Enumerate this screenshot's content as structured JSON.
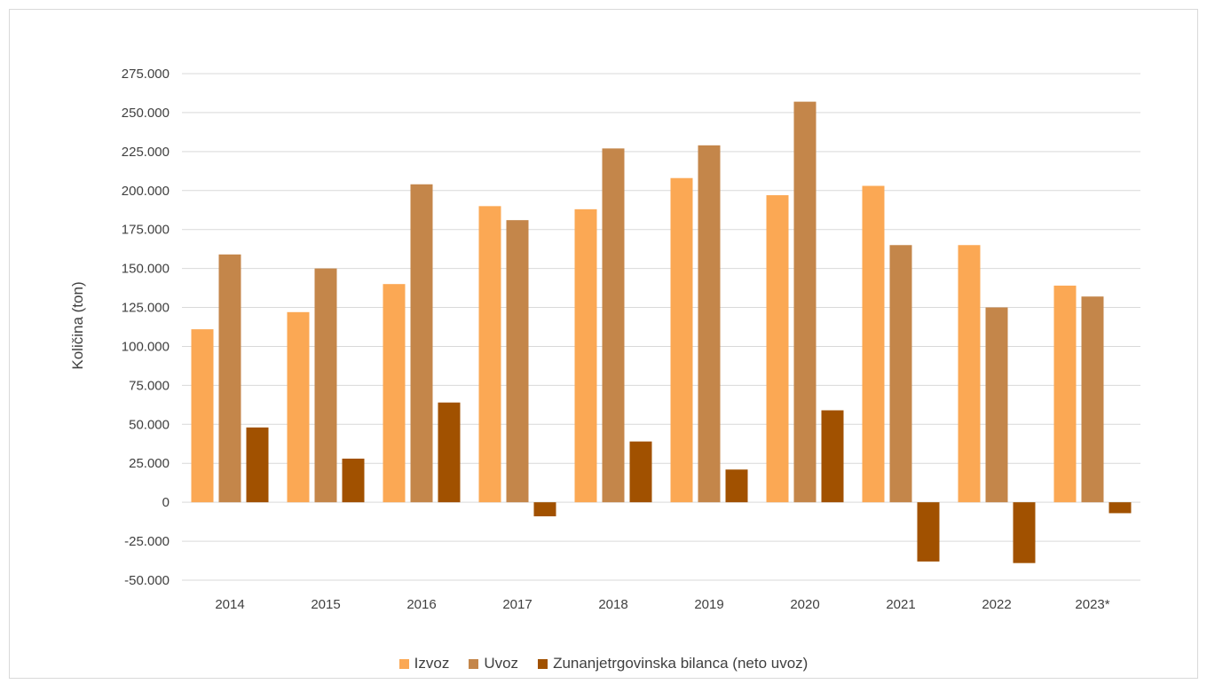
{
  "chart_data": {
    "type": "bar",
    "title": "",
    "xlabel": "",
    "ylabel": "Količina (ton)",
    "categories": [
      "2014",
      "2015",
      "2016",
      "2017",
      "2018",
      "2019",
      "2020",
      "2021",
      "2022",
      "2023*"
    ],
    "series": [
      {
        "name": "Izvoz",
        "color": "#FBA854",
        "values": [
          111000,
          122000,
          140000,
          190000,
          188000,
          208000,
          197000,
          203000,
          165000,
          139000
        ]
      },
      {
        "name": "Uvoz",
        "color": "#C4864A",
        "values": [
          159000,
          150000,
          204000,
          181000,
          227000,
          229000,
          257000,
          165000,
          125000,
          132000
        ]
      },
      {
        "name": "Zunanjetrgovinska bilanca (neto uvoz)",
        "color": "#A15100",
        "values": [
          48000,
          28000,
          64000,
          -9000,
          39000,
          21000,
          59000,
          -38000,
          -39000,
          -7000
        ]
      }
    ],
    "ylim": [
      -50000,
      275000
    ],
    "yticks": [
      -50000,
      -25000,
      0,
      25000,
      50000,
      75000,
      100000,
      125000,
      150000,
      175000,
      200000,
      225000,
      250000,
      275000
    ],
    "ytick_labels": [
      "-50.000",
      "-25.000",
      "0",
      "25.000",
      "50.000",
      "75.000",
      "100.000",
      "125.000",
      "150.000",
      "175.000",
      "200.000",
      "225.000",
      "250.000",
      "275.000"
    ],
    "grid": true,
    "legend_position": "bottom"
  }
}
